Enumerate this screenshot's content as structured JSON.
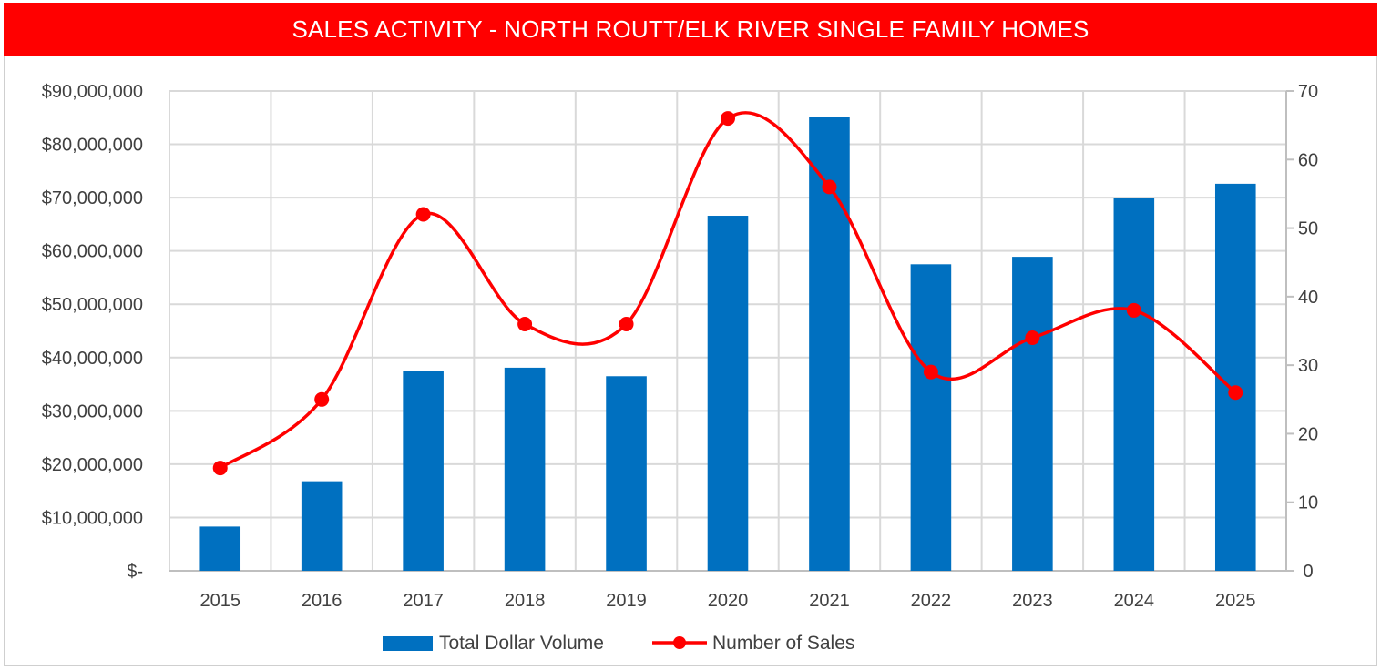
{
  "chart_data": {
    "type": "bar",
    "title": "SALES ACTIVITY - NORTH ROUTT/ELK RIVER SINGLE FAMILY HOMES",
    "categories": [
      "2015",
      "2016",
      "2017",
      "2018",
      "2019",
      "2020",
      "2021",
      "2022",
      "2023",
      "2024",
      "2025"
    ],
    "series": [
      {
        "name": "Total Dollar Volume",
        "type": "bar",
        "axis": "left",
        "color": "#0070c0",
        "values": [
          8300000,
          16800000,
          37400000,
          38100000,
          36500000,
          66600000,
          85200000,
          57500000,
          58900000,
          69900000,
          72600000
        ]
      },
      {
        "name": "Number of Sales",
        "type": "line",
        "axis": "right",
        "color": "#ff0000",
        "smooth": true,
        "values": [
          15,
          25,
          52,
          36,
          36,
          66,
          56,
          29,
          34,
          38,
          26
        ]
      }
    ],
    "y_left": {
      "min": 0,
      "max": 90000000,
      "ticks": [
        0,
        10000000,
        20000000,
        30000000,
        40000000,
        50000000,
        60000000,
        70000000,
        80000000,
        90000000
      ],
      "tick_labels": [
        "$-",
        "$10,000,000",
        "$20,000,000",
        "$30,000,000",
        "$40,000,000",
        "$50,000,000",
        "$60,000,000",
        "$70,000,000",
        "$80,000,000",
        "$90,000,000"
      ]
    },
    "y_right": {
      "min": 0,
      "max": 70,
      "ticks": [
        0,
        10,
        20,
        30,
        40,
        50,
        60,
        70
      ],
      "tick_labels": [
        "0",
        "10",
        "20",
        "30",
        "40",
        "50",
        "60",
        "70"
      ]
    },
    "grid": true,
    "legend_position": "bottom-center",
    "legend": [
      {
        "label": "Total Dollar Volume",
        "marker": "bar",
        "color": "#0070c0"
      },
      {
        "label": "Number of Sales",
        "marker": "line-dot",
        "color": "#ff0000"
      }
    ]
  }
}
